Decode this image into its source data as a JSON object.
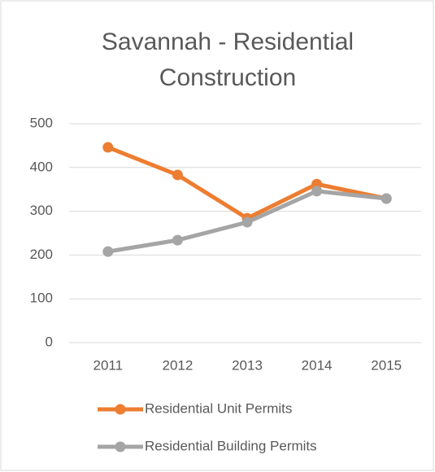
{
  "chart_data": {
    "type": "line",
    "title": "Savannah - Residential Construction",
    "categories": [
      "2011",
      "2012",
      "2013",
      "2014",
      "2015"
    ],
    "series": [
      {
        "name": "Residential Unit Permits",
        "color": "#ed7d31",
        "values": [
          446,
          383,
          284,
          362,
          329
        ]
      },
      {
        "name": "Residential Building Permits",
        "color": "#a5a5a5",
        "values": [
          208,
          234,
          275,
          346,
          329
        ]
      }
    ],
    "ylim": [
      0,
      500
    ],
    "yticks": [
      0,
      100,
      200,
      300,
      400,
      500
    ],
    "grid": true
  }
}
